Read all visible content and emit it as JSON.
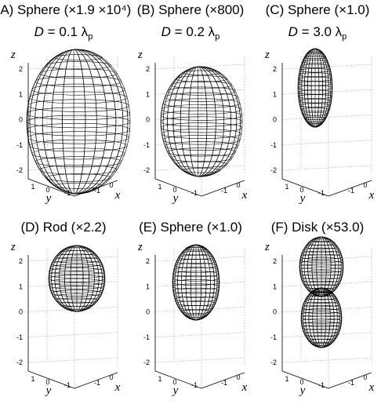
{
  "panels": [
    {
      "title": "(A) Sphere (×1.9 ×10⁴)",
      "subtitle": {
        "var": "D",
        "text": " = 0.1 λ",
        "sub": "p"
      },
      "z_label": "z",
      "z_ticks": [
        "2",
        "1",
        "0",
        "-1",
        "-2"
      ],
      "y_label": "y",
      "y_ticks": [
        "1",
        "0",
        "-1"
      ],
      "x_label": "x",
      "x_ticks": [
        "-1",
        "0"
      ]
    },
    {
      "title": "(B) Sphere (×800)",
      "subtitle": {
        "var": "D",
        "text": " = 0.2 λ",
        "sub": "p"
      },
      "z_label": "z",
      "z_ticks": [
        "2",
        "1",
        "0",
        "-1",
        "-2"
      ],
      "y_label": "y",
      "y_ticks": [
        "1",
        "0",
        "-1"
      ],
      "x_label": "x",
      "x_ticks": [
        "-1",
        "0"
      ]
    },
    {
      "title": "(C) Sphere (×1.0)",
      "subtitle": {
        "var": "D",
        "text": " = 3.0 λ",
        "sub": "p"
      },
      "z_label": "z",
      "z_ticks": [
        "2",
        "1",
        "0",
        "-1",
        "-2"
      ],
      "y_label": "y",
      "y_ticks": [
        "1",
        "0",
        "-1"
      ],
      "x_label": "x",
      "x_ticks": [
        "-1",
        "0"
      ]
    },
    {
      "title": "(D) Rod (×2.2)",
      "z_label": "z",
      "z_ticks": [
        "2",
        "1",
        "0",
        "-1",
        "-2"
      ],
      "y_label": "y",
      "y_ticks": [
        "1",
        "0",
        "-1"
      ],
      "x_label": "x",
      "x_ticks": [
        "-1",
        "0"
      ]
    },
    {
      "title": "(E) Sphere (×1.0)",
      "z_label": "z",
      "z_ticks": [
        "2",
        "1",
        "0",
        "-1",
        "-2"
      ],
      "y_label": "y",
      "y_ticks": [
        "1",
        "0",
        "-1"
      ],
      "x_label": "x",
      "x_ticks": [
        "-1",
        "0"
      ]
    },
    {
      "title": "(F) Disk (×53.0)",
      "z_label": "z",
      "z_ticks": [
        "2",
        "1",
        "0",
        "-1",
        "-2"
      ],
      "y_label": "y",
      "y_ticks": [
        "1",
        "0",
        "-1"
      ],
      "x_label": "x",
      "x_ticks": [
        "-1",
        "0"
      ]
    }
  ]
}
